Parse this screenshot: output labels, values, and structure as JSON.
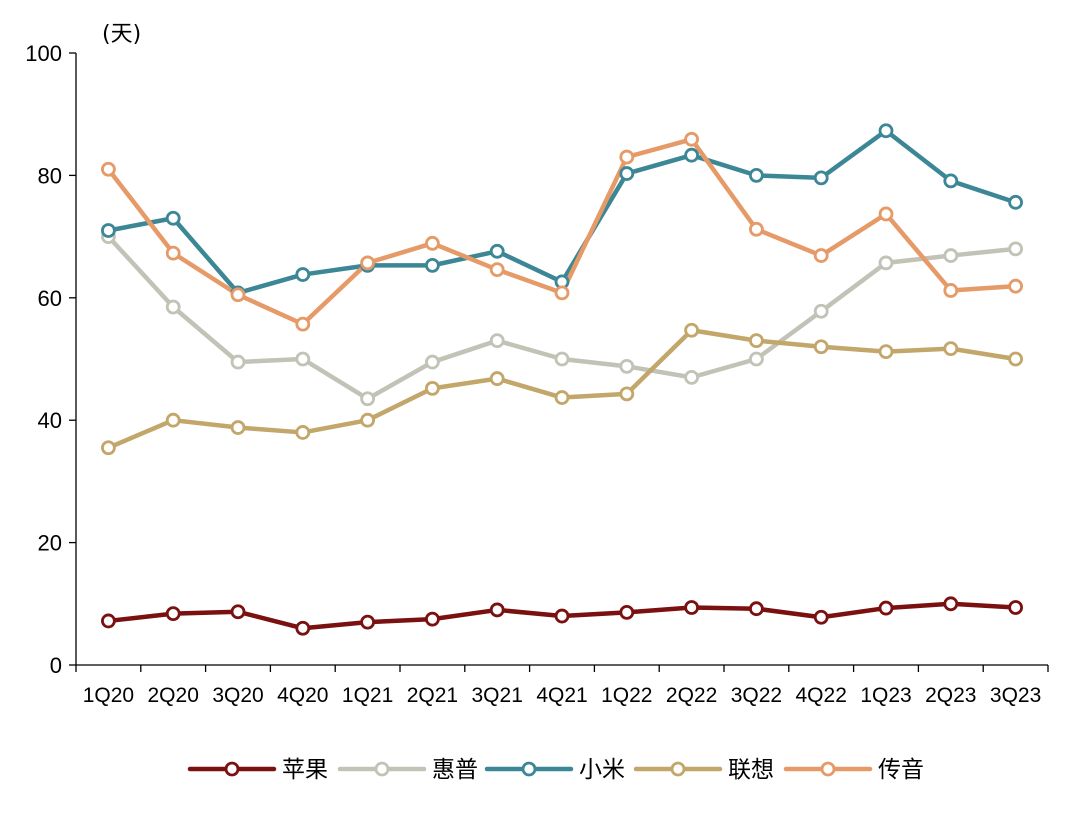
{
  "chart_data": {
    "type": "line",
    "title": "",
    "xlabel": "",
    "ylabel": "(天)",
    "ylim": [
      0,
      100
    ],
    "yticks": [
      0,
      20,
      40,
      60,
      80,
      100
    ],
    "grid": false,
    "legend": "bottom",
    "categories": [
      "1Q20",
      "2Q20",
      "3Q20",
      "4Q20",
      "1Q21",
      "2Q21",
      "3Q21",
      "4Q21",
      "1Q22",
      "2Q22",
      "3Q22",
      "4Q22",
      "1Q23",
      "2Q23",
      "3Q23"
    ],
    "series": [
      {
        "name": "苹果",
        "color": "#7a1010",
        "values": [
          7.2,
          8.4,
          8.7,
          6.0,
          7.0,
          7.5,
          9.0,
          8.0,
          8.6,
          9.4,
          9.2,
          7.8,
          9.3,
          10.0,
          9.4
        ]
      },
      {
        "name": "惠普",
        "color": "#c2c2b6",
        "values": [
          70.0,
          58.5,
          49.5,
          50.0,
          43.5,
          49.5,
          53.0,
          50.0,
          48.8,
          47.0,
          50.0,
          57.8,
          65.7,
          66.9,
          68.0
        ]
      },
      {
        "name": "小米",
        "color": "#3c8796",
        "values": [
          71.0,
          73.0,
          60.8,
          63.8,
          65.3,
          65.3,
          67.6,
          62.6,
          80.3,
          83.3,
          80.0,
          79.6,
          87.3,
          79.1,
          75.6
        ]
      },
      {
        "name": "联想",
        "color": "#c2a66a",
        "values": [
          35.5,
          40.0,
          38.8,
          38.0,
          40.0,
          45.2,
          46.8,
          43.7,
          44.3,
          54.7,
          53.0,
          52.0,
          51.2,
          51.7,
          50.0
        ]
      },
      {
        "name": "传音",
        "color": "#e59a67",
        "values": [
          81.0,
          67.3,
          60.5,
          55.7,
          65.7,
          68.9,
          64.6,
          60.8,
          83.0,
          85.9,
          71.2,
          66.9,
          73.7,
          61.2,
          61.9
        ]
      }
    ]
  }
}
